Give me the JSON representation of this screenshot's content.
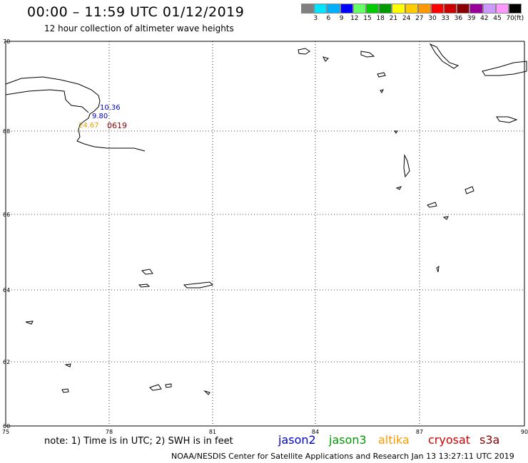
{
  "header": {
    "title": "00:00 – 11:59 UTC 01/12/2019",
    "subtitle": "12 hour collection of altimeter wave heights"
  },
  "legend": {
    "unit": "(ft)",
    "items": [
      {
        "label": "",
        "color": "#808080"
      },
      {
        "label": "3",
        "color": "#00e5ff"
      },
      {
        "label": "6",
        "color": "#00b0ff"
      },
      {
        "label": "9",
        "color": "#0000ff"
      },
      {
        "label": "12",
        "color": "#66ff66"
      },
      {
        "label": "15",
        "color": "#00cc00"
      },
      {
        "label": "18",
        "color": "#009900"
      },
      {
        "label": "21",
        "color": "#ffff00"
      },
      {
        "label": "24",
        "color": "#ffcc00"
      },
      {
        "label": "27",
        "color": "#ff9900"
      },
      {
        "label": "30",
        "color": "#ff0000"
      },
      {
        "label": "33",
        "color": "#cc0000"
      },
      {
        "label": "36",
        "color": "#880000"
      },
      {
        "label": "39",
        "color": "#990099"
      },
      {
        "label": "42",
        "color": "#cc99ff"
      },
      {
        "label": "45",
        "color": "#ff99ff"
      },
      {
        "label": "70",
        "color": "#000000"
      }
    ]
  },
  "map": {
    "lon_ticks": [
      "75",
      "78",
      "81",
      "84",
      "87",
      "90"
    ],
    "lat_ticks": [
      "70",
      "68",
      "66",
      "64",
      "62",
      "60"
    ],
    "observations": [
      {
        "text": "10.36",
        "color": "#0000cc"
      },
      {
        "text": "9.80",
        "color": "#0000cc"
      },
      {
        "text": "24.67",
        "color": "#e0a000"
      },
      {
        "text": "0619",
        "color": "#880000"
      }
    ]
  },
  "footer": {
    "note": "note: 1) Time is in UTC; 2) SWH is in feet",
    "satellites": [
      {
        "name": "jason2",
        "color": "#0000cc"
      },
      {
        "name": "jason3",
        "color": "#009900"
      },
      {
        "name": "altika",
        "color": "#ff9900"
      },
      {
        "name": "cryosat",
        "color": "#cc0000"
      },
      {
        "name": "s3a",
        "color": "#880000"
      }
    ],
    "credit": "NOAA/NESDIS Center for Satellite Applications and Research    Jan 13 13:27:11 UTC 2019"
  }
}
